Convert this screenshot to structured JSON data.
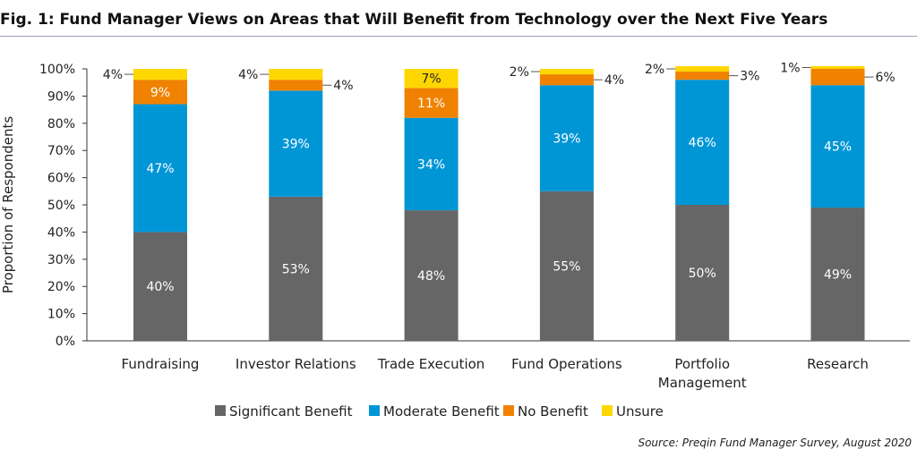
{
  "title": "Fig. 1: Fund Manager Views on Areas that Will Benefit from Technology over the Next Five Years",
  "source": "Source: Preqin Fund Manager Survey, August 2020",
  "colors": {
    "significant": "#666666",
    "moderate": "#0096d6",
    "no_benefit": "#f08200",
    "unsure": "#ffd700"
  },
  "chart_data": {
    "type": "bar",
    "stacked": true,
    "title": "Fig. 1: Fund Manager Views on Areas that Will Benefit from Technology over the Next Five Years",
    "xlabel": "",
    "ylabel": "Proportion of Respondents",
    "ylim": [
      0,
      100
    ],
    "yticks": [
      "0%",
      "10%",
      "20%",
      "30%",
      "40%",
      "50%",
      "60%",
      "70%",
      "80%",
      "90%",
      "100%"
    ],
    "categories": [
      "Fundraising",
      "Investor Relations",
      "Trade Execution",
      "Fund Operations",
      "Portfolio Management",
      "Research"
    ],
    "category_lines": [
      [
        "Fundraising"
      ],
      [
        "Investor Relations"
      ],
      [
        "Trade Execution"
      ],
      [
        "Fund Operations"
      ],
      [
        "Portfolio",
        "Management"
      ],
      [
        "Research"
      ]
    ],
    "series": [
      {
        "name": "Significant Benefit",
        "key": "significant",
        "values": [
          40,
          53,
          48,
          55,
          50,
          49
        ],
        "labels": [
          "40%",
          "53%",
          "48%",
          "55%",
          "50%",
          "49%"
        ]
      },
      {
        "name": "Moderate Benefit",
        "key": "moderate",
        "values": [
          47,
          39,
          34,
          39,
          46,
          45
        ],
        "labels": [
          "47%",
          "39%",
          "34%",
          "39%",
          "46%",
          "45%"
        ]
      },
      {
        "name": "No Benefit",
        "key": "no_benefit",
        "values": [
          9,
          4,
          11,
          4,
          3,
          6
        ],
        "labels": [
          "9%",
          "4%",
          "11%",
          "4%",
          "3%",
          "6%"
        ]
      },
      {
        "name": "Unsure",
        "key": "unsure",
        "values": [
          4,
          4,
          7,
          2,
          2,
          1
        ],
        "labels": [
          "4%",
          "4%",
          "7%",
          "2%",
          "2%",
          "1%"
        ]
      }
    ],
    "legend": {
      "position": "bottom"
    }
  }
}
